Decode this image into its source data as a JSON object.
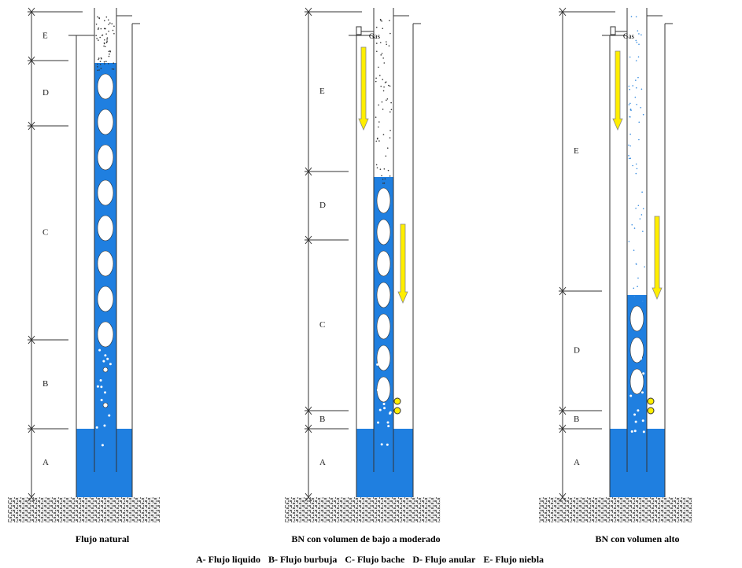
{
  "diagrams": [
    {
      "caption": "Flujo natural",
      "zones": [
        "E",
        "D",
        "C",
        "B",
        "A"
      ]
    },
    {
      "caption": "BN con volumen de bajo a moderado",
      "gas_label": "Gas",
      "zones": [
        "E",
        "D",
        "C",
        "B",
        "A"
      ]
    },
    {
      "caption": "BN con volumen alto",
      "gas_label": "Gas",
      "zones": [
        "E",
        "D",
        "B",
        "A"
      ]
    }
  ],
  "legend": [
    "A- Flujo liquido",
    "B- Flujo burbuja",
    "C- Flujo bache",
    "D- Flujo anular",
    "E- Flujo niebla"
  ]
}
